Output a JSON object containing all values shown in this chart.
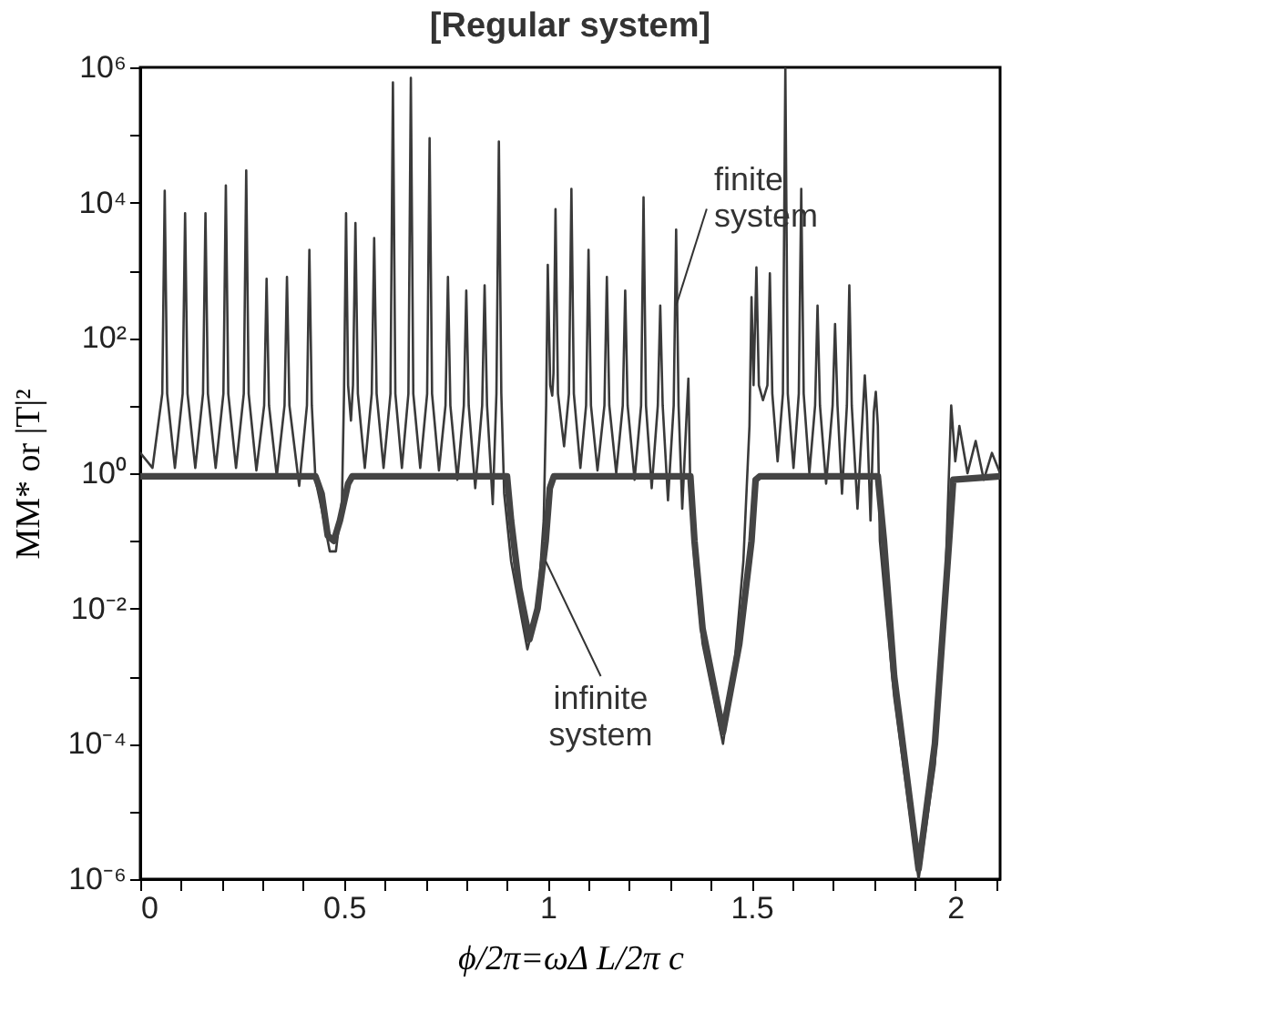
{
  "chart_data": {
    "type": "line",
    "title": "[Regular system]",
    "xlabel": "ϕ/2π=ωΔ L/2π c",
    "ylabel": "MM* or |T|²",
    "log": true,
    "xlim": [
      0,
      2.11
    ],
    "ylim": [
      1e-06,
      1000000.0
    ],
    "xticks": [
      0,
      {
        "value": 0.1,
        "label": null
      },
      {
        "value": 0.2,
        "label": null
      },
      {
        "value": 0.3,
        "label": null
      },
      {
        "value": 0.4,
        "label": null
      },
      0.5,
      {
        "value": 0.6,
        "label": null
      },
      {
        "value": 0.7,
        "label": null
      },
      {
        "value": 0.8,
        "label": null
      },
      {
        "value": 0.9,
        "label": null
      },
      1,
      {
        "value": 1.1,
        "label": null
      },
      {
        "value": 1.2,
        "label": null
      },
      {
        "value": 1.3,
        "label": null
      },
      {
        "value": 1.4,
        "label": null
      },
      1.5,
      {
        "value": 1.6,
        "label": null
      },
      {
        "value": 1.7,
        "label": null
      },
      {
        "value": 1.8,
        "label": null
      },
      {
        "value": 1.9,
        "label": null
      },
      2,
      {
        "value": 2.1,
        "label": null
      }
    ],
    "yticks": [
      {
        "value": 1e-06,
        "label": "10⁻⁶"
      },
      {
        "value": 1e-05,
        "label": null
      },
      {
        "value": 0.0001,
        "label": "10⁻⁴"
      },
      {
        "value": 0.001,
        "label": null
      },
      {
        "value": 0.01,
        "label": "10⁻²"
      },
      {
        "value": 0.1,
        "label": null
      },
      {
        "value": 1,
        "label": "10⁰"
      },
      {
        "value": 10,
        "label": null
      },
      {
        "value": 100,
        "label": "10²"
      },
      {
        "value": 1000,
        "label": null
      },
      {
        "value": 10000.0,
        "label": "10⁴"
      },
      {
        "value": 100000.0,
        "label": null
      },
      {
        "value": 1000000.0,
        "label": "10⁶"
      }
    ],
    "annotations": [
      {
        "text": "finite system",
        "x": 1.315,
        "y": 300
      },
      {
        "text": "infinite system",
        "x": 0.995,
        "y": 0.05
      }
    ],
    "series": [
      {
        "color": "#3a3a3a",
        "x": [
          0,
          0.03,
          0.054,
          0.06,
          0.066,
          0.085,
          0.104,
          0.11,
          0.116,
          0.135,
          0.154,
          0.16,
          0.166,
          0.185,
          0.204,
          0.21,
          0.216,
          0.235,
          0.254,
          0.26,
          0.266,
          0.285,
          0.304,
          0.31,
          0.316,
          0.335,
          0.354,
          0.36,
          0.366,
          0.39,
          0.409,
          0.415,
          0.421,
          0.43,
          0.445,
          0.465,
          0.48,
          0.495,
          0.5,
          0.505,
          0.51,
          0.517,
          0.522,
          0.528,
          0.534,
          0.551,
          0.568,
          0.574,
          0.58,
          0.597,
          0.614,
          0.62,
          0.626,
          0.642,
          0.658,
          0.664,
          0.67,
          0.687,
          0.704,
          0.71,
          0.716,
          0.733,
          0.749,
          0.755,
          0.761,
          0.778,
          0.794,
          0.8,
          0.806,
          0.822,
          0.839,
          0.845,
          0.851,
          0.865,
          0.874,
          0.88,
          0.886,
          0.893,
          0.91,
          0.95,
          0.975,
          0.99,
          0.996,
          1.0,
          1.006,
          1.011,
          1.014,
          1.019,
          1.025,
          1.04,
          1.052,
          1.058,
          1.064,
          1.08,
          1.094,
          1.1,
          1.106,
          1.122,
          1.139,
          1.145,
          1.151,
          1.168,
          1.184,
          1.19,
          1.196,
          1.213,
          1.229,
          1.235,
          1.241,
          1.255,
          1.27,
          1.276,
          1.282,
          1.295,
          1.309,
          1.315,
          1.321,
          1.33,
          1.341,
          1.345,
          1.35,
          1.36,
          1.38,
          1.43,
          1.46,
          1.48,
          1.495,
          1.5,
          1.505,
          1.512,
          1.518,
          1.528,
          1.539,
          1.545,
          1.551,
          1.564,
          1.577,
          1.583,
          1.589,
          1.603,
          1.616,
          1.622,
          1.628,
          1.642,
          1.656,
          1.662,
          1.668,
          1.683,
          1.699,
          1.705,
          1.711,
          1.722,
          1.734,
          1.74,
          1.746,
          1.76,
          1.773,
          1.778,
          1.783,
          1.792,
          1.8,
          1.805,
          1.81,
          1.815,
          1.83,
          1.85,
          1.91,
          1.95,
          1.975,
          1.99,
          2.0,
          2.01,
          2.03,
          2.05,
          2.07,
          2.09,
          2.11
        ],
        "values": [
          2,
          1.2,
          15,
          15000.0,
          15,
          1.2,
          15,
          7000.0,
          15,
          1.2,
          15,
          7000.0,
          15,
          1.2,
          15,
          18000.0,
          15,
          1.2,
          15,
          30000.0,
          15,
          1.1,
          10,
          750,
          10,
          0.9,
          10,
          800,
          10,
          0.65,
          10,
          2000.0,
          10,
          0.8,
          0.3,
          0.07,
          0.07,
          0.4,
          15,
          7000.0,
          20,
          6,
          20,
          5000.0,
          15,
          1.2,
          15,
          3000.0,
          15,
          1.2,
          15,
          600000.0,
          15,
          1.2,
          15,
          700000.0,
          15,
          1.2,
          15,
          90000.0,
          15,
          1.1,
          10,
          800,
          10,
          0.8,
          10,
          500,
          10,
          0.6,
          10,
          600,
          10,
          0.35,
          15,
          80000.0,
          15,
          0.5,
          0.05,
          0.0025,
          0.01,
          0.2,
          10,
          1200.0,
          20,
          14,
          30,
          8000.0,
          15,
          2.5,
          15,
          16000.0,
          15,
          1.2,
          10,
          2000.0,
          10,
          1.1,
          10,
          800,
          10,
          1,
          10,
          500,
          10,
          0.8,
          10,
          12000.0,
          10,
          0.6,
          10,
          300,
          10,
          0.4,
          10,
          4000.0,
          10,
          0.3,
          8,
          25,
          0.5,
          0.05,
          0.003,
          0.0001,
          0.002,
          0.05,
          5,
          400,
          20,
          1100.0,
          20,
          12,
          20,
          900,
          15,
          1.5,
          15,
          1000000.0,
          15,
          1.2,
          15,
          16000.0,
          15,
          1,
          10,
          300,
          10,
          0.7,
          10,
          160,
          10,
          0.5,
          10,
          600,
          10,
          0.3,
          8,
          28,
          8,
          0.2,
          8,
          16,
          5,
          0.1,
          0.01,
          0.0005,
          1e-06,
          5e-05,
          0.02,
          10,
          1.5,
          5,
          1,
          3,
          0.8,
          2,
          1
        ]
      },
      {
        "color": "#444444",
        "x": [
          0,
          0.43,
          0.445,
          0.46,
          0.475,
          0.49,
          0.51,
          0.52,
          0.9,
          0.91,
          0.93,
          0.955,
          0.975,
          0.995,
          1.005,
          1.015,
          1.35,
          1.36,
          1.38,
          1.43,
          1.47,
          1.5,
          1.51,
          1.52,
          1.81,
          1.825,
          1.85,
          1.91,
          1.95,
          1.985,
          1.995,
          2.11
        ],
        "values": [
          0.9,
          0.9,
          0.5,
          0.12,
          0.1,
          0.2,
          0.7,
          0.9,
          0.9,
          0.2,
          0.02,
          0.0035,
          0.01,
          0.1,
          0.6,
          0.9,
          0.9,
          0.1,
          0.005,
          0.00015,
          0.003,
          0.1,
          0.8,
          0.9,
          0.9,
          0.1,
          0.001,
          1.4e-06,
          0.0001,
          0.1,
          0.8,
          0.9
        ]
      }
    ]
  }
}
